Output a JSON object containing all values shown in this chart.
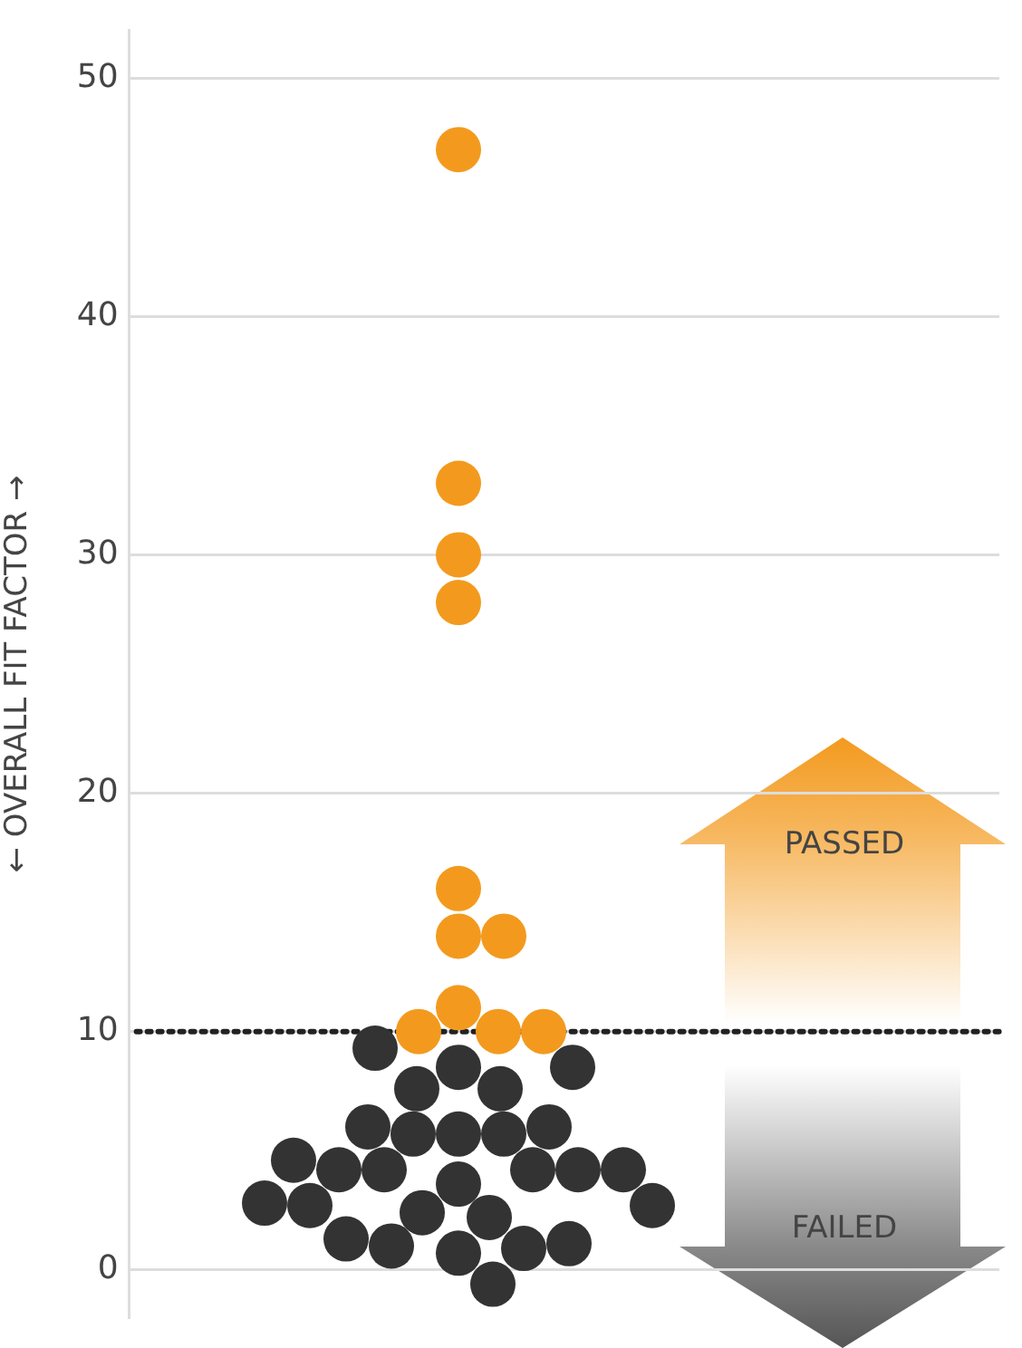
{
  "chart_data": {
    "type": "scatter",
    "ylabel": "← OVERALL FIT FACTOR →",
    "categories": [
      null
    ],
    "series": [
      {
        "color": "#f39a1e",
        "x": [
          null,
          null,
          null,
          null,
          null,
          null,
          null,
          null,
          null,
          null,
          null
        ],
        "values": [
          47,
          33,
          30,
          28,
          16,
          14,
          14,
          11,
          10,
          10,
          10
        ]
      },
      {
        "color": "#333333",
        "x": [
          null,
          null,
          null,
          null,
          null,
          null,
          null,
          null,
          null,
          null,
          null,
          null,
          null,
          null,
          null,
          null,
          null,
          null,
          null,
          null,
          null,
          null,
          null,
          null,
          null,
          null,
          null,
          null
        ],
        "values": [
          9.3,
          8.5,
          8.5,
          7.6,
          7.6,
          5.7,
          5.7,
          5.7,
          6,
          6,
          4.2,
          3.6,
          4.2,
          4.2,
          4.2,
          4.2,
          4.6,
          2.2,
          2.4,
          2.7,
          2.7,
          2.8,
          0.7,
          0.9,
          1,
          1.1,
          1.3,
          -0.6
        ]
      }
    ],
    "ylim": [
      -2,
      52
    ],
    "yticks": [
      0,
      10,
      20,
      30,
      40,
      50
    ],
    "grid": "y",
    "legend": false,
    "marker": "circle",
    "tick_labels": "y",
    "ref_lines": [
      {
        "axis": "y",
        "value": 10,
        "color": "#222222",
        "line_style": "dotted"
      }
    ],
    "annotations": [
      "PASSED",
      "FAILED"
    ]
  }
}
